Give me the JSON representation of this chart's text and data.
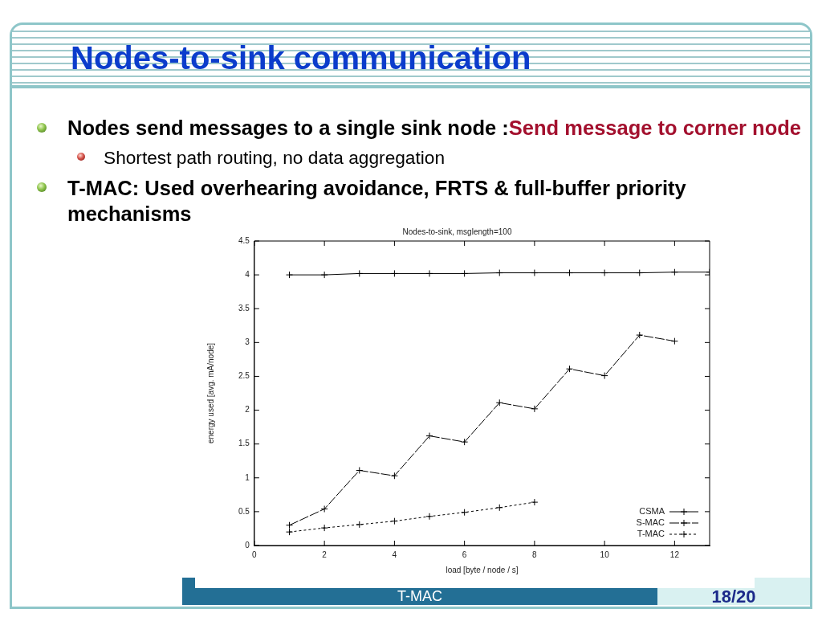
{
  "chart_data": {
    "type": "line",
    "title": "Nodes-to-sink communication",
    "subtitle": "Nodes-to-sink, msglength=100",
    "xlabel": "load [byte / node / s]",
    "ylabel": "energy used [avg. mA/node]",
    "annotations": [
      "Nodes send messages to a single sink node :",
      "Send message to corner node",
      "Shortest path routing, no data aggregation",
      "T-MAC: Used overhearing avoidance, FRTS & full-buffer priority mechanisms",
      "T-MAC",
      "18/20"
    ],
    "xlim": [
      0,
      13
    ],
    "xticks": [
      0,
      2,
      4,
      6,
      8,
      10,
      12
    ],
    "ylim": [
      0,
      4.5
    ],
    "yticks": [
      0,
      0.5,
      1,
      1.5,
      2,
      2.5,
      3,
      3.5,
      4,
      4.5
    ],
    "grid": false,
    "legend": "bottom right",
    "series": [
      {
        "name": "CSMA",
        "color": "#000000",
        "marker": "cross",
        "line_style": "solid",
        "x": [
          1,
          2,
          3,
          4,
          5,
          6,
          7,
          8,
          9,
          10,
          11,
          12,
          13
        ],
        "values": [
          4.0,
          4.0,
          4.02,
          4.02,
          4.02,
          4.02,
          4.03,
          4.03,
          4.03,
          4.03,
          4.03,
          4.04,
          4.04
        ]
      },
      {
        "name": "S-MAC",
        "color": "#000000",
        "marker": "cross",
        "line_style": "dashed",
        "x": [
          1,
          2,
          3,
          4,
          5,
          6,
          7,
          8,
          9,
          10,
          11,
          12
        ],
        "values": [
          0.3,
          0.54,
          1.11,
          1.03,
          1.62,
          1.53,
          2.11,
          2.02,
          2.61,
          2.51,
          3.11,
          3.02
        ]
      },
      {
        "name": "T-MAC",
        "color": "#000000",
        "marker": "cross",
        "line_style": "dotted",
        "x": [
          1,
          2,
          3,
          4,
          5,
          6,
          7,
          8
        ],
        "values": [
          0.2,
          0.26,
          0.31,
          0.36,
          0.43,
          0.49,
          0.56,
          0.64
        ]
      }
    ]
  }
}
